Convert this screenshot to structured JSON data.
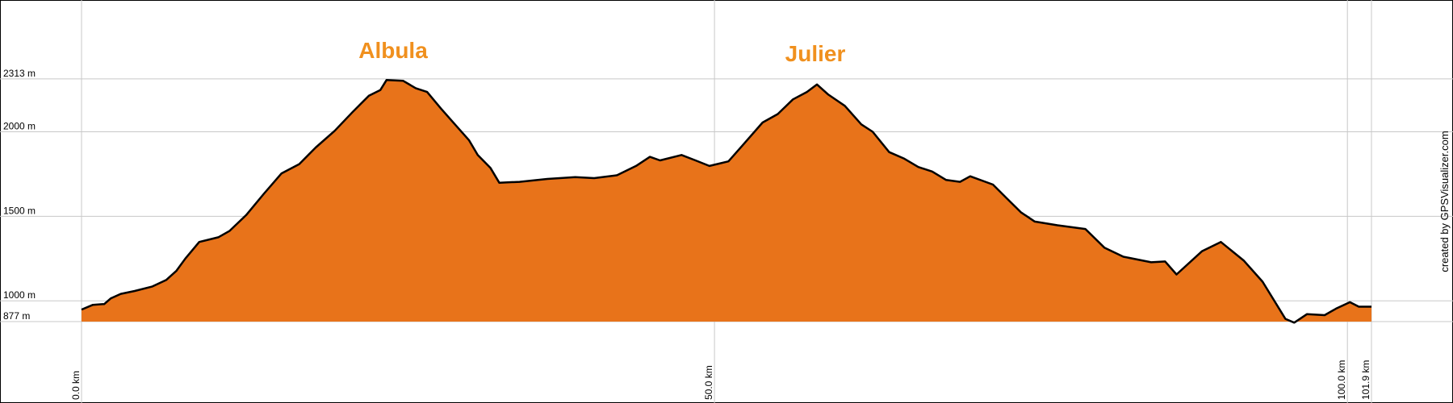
{
  "chart_data": {
    "type": "area",
    "color": "#e8731a",
    "line_color": "#000000",
    "grid": true,
    "annotations": [
      "Albula",
      "Julier"
    ],
    "credit": "created by GPSVisualizer.com",
    "xlim": [
      0,
      101.9
    ],
    "ylim": [
      877,
      2780
    ],
    "xticks": [
      {
        "value": 0,
        "label": "0.0 km"
      },
      {
        "value": 50,
        "label": "50.0 km"
      },
      {
        "value": 100,
        "label": "100.0 km"
      },
      {
        "value": 101.9,
        "label": "101.9 km"
      }
    ],
    "yticks": [
      {
        "value": 877,
        "label": "877 m"
      },
      {
        "value": 1000,
        "label": "1000 m"
      },
      {
        "value": 1500,
        "label": "1500 m"
      },
      {
        "value": 2000,
        "label": "2000 m"
      },
      {
        "value": 2313,
        "label": "2313 m"
      }
    ],
    "x": [
      0,
      0.9,
      1.8,
      2.3,
      3.1,
      4.2,
      5.6,
      6.7,
      7.5,
      8.2,
      9.3,
      10.8,
      11.7,
      13.0,
      14.4,
      15.8,
      17.2,
      18.5,
      20.0,
      21.4,
      22.7,
      23.6,
      24.1,
      25.4,
      26.4,
      27.3,
      28.4,
      29.5,
      30.6,
      31.3,
      32.3,
      33.0,
      34.6,
      36.8,
      39.0,
      40.5,
      42.3,
      43.8,
      44.9,
      45.7,
      47.4,
      48.5,
      49.6,
      51.1,
      52.2,
      53.8,
      55.0,
      56.2,
      57.3,
      58.1,
      59.0,
      60.3,
      61.6,
      62.5,
      63.8,
      65.0,
      66.1,
      67.2,
      68.3,
      69.4,
      70.2,
      72.0,
      73.1,
      74.2,
      75.3,
      77.1,
      79.3,
      80.8,
      82.3,
      84.5,
      85.6,
      86.5,
      88.5,
      90.0,
      91.8,
      93.3,
      95.1,
      95.8,
      96.8,
      98.2,
      99.1,
      100.2,
      100.9,
      101.9
    ],
    "values": [
      948,
      976,
      981,
      1014,
      1041,
      1058,
      1085,
      1124,
      1178,
      1250,
      1348,
      1376,
      1414,
      1507,
      1633,
      1754,
      1809,
      1907,
      2006,
      2116,
      2214,
      2247,
      2307,
      2302,
      2258,
      2236,
      2137,
      2044,
      1951,
      1863,
      1787,
      1699,
      1704,
      1721,
      1732,
      1726,
      1743,
      1798,
      1852,
      1831,
      1863,
      1831,
      1798,
      1825,
      1918,
      2055,
      2105,
      2192,
      2236,
      2280,
      2220,
      2154,
      2044,
      2000,
      1880,
      1841,
      1792,
      1765,
      1715,
      1704,
      1737,
      1688,
      1606,
      1524,
      1469,
      1447,
      1425,
      1315,
      1261,
      1228,
      1233,
      1156,
      1293,
      1348,
      1239,
      1113,
      893,
      871,
      921,
      915,
      954,
      992,
      965,
      965
    ]
  }
}
